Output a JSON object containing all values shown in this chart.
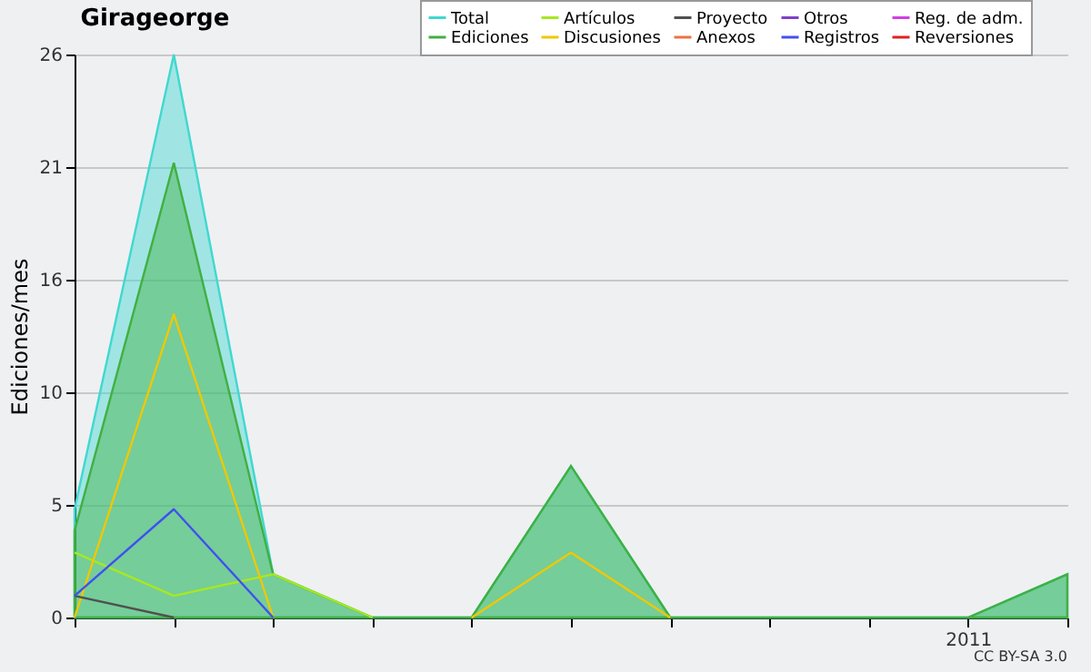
{
  "chart_data": {
    "type": "line",
    "title": "Girageorge",
    "ylabel": "Ediciones/mes",
    "categories": [
      null,
      null,
      null,
      null,
      null,
      null,
      null,
      null,
      null,
      "2011",
      null
    ],
    "ylim": [
      0,
      26
    ],
    "yticks": [
      0,
      {
        "value": 5.2,
        "label": "5"
      },
      {
        "value": 10.4,
        "label": "10"
      },
      {
        "value": 15.6,
        "label": "16"
      },
      {
        "value": 20.8,
        "label": "21"
      },
      26
    ],
    "grid": "y",
    "legend": "top right",
    "annotations": [
      "CC BY-SA 3.0"
    ],
    "series": [
      {
        "name": "Total",
        "type": "area",
        "color": "#40d8d0",
        "values": [
          5,
          26,
          2,
          0,
          0,
          7,
          0,
          0,
          0,
          0,
          2
        ]
      },
      {
        "name": "Ediciones",
        "type": "area",
        "color": "#40b040",
        "values": [
          4,
          21,
          2,
          0,
          0,
          7,
          0,
          0,
          0,
          0,
          2
        ]
      },
      {
        "name": "Artículos",
        "color": "#a8e820",
        "values": [
          3,
          1,
          2,
          0,
          null,
          null,
          null,
          null,
          null,
          null,
          null
        ]
      },
      {
        "name": "Discusiones",
        "color": "#f0c800",
        "values": [
          0,
          14,
          0,
          null,
          0,
          3,
          0,
          null,
          null,
          null,
          null
        ]
      },
      {
        "name": "Proyecto",
        "color": "#505050",
        "values": [
          1,
          0,
          null,
          null,
          null,
          null,
          null,
          null,
          null,
          null,
          null
        ]
      },
      {
        "name": "Anexos",
        "color": "#f07040",
        "values": [
          null,
          null,
          null,
          null,
          null,
          null,
          null,
          null,
          null,
          null,
          null
        ]
      },
      {
        "name": "Otros",
        "color": "#8040c8",
        "values": [
          null,
          null,
          null,
          null,
          null,
          null,
          null,
          null,
          null,
          null,
          null
        ]
      },
      {
        "name": "Registros",
        "color": "#4050f0",
        "values": [
          1,
          5,
          0,
          null,
          null,
          null,
          null,
          null,
          null,
          null,
          null
        ]
      },
      {
        "name": "Reg. de adm.",
        "color": "#d040e0",
        "values": [
          null,
          null,
          null,
          null,
          null,
          null,
          null,
          null,
          null,
          null,
          null
        ]
      },
      {
        "name": "Reversiones",
        "color": "#e02020",
        "values": [
          null,
          null,
          null,
          null,
          null,
          null,
          null,
          null,
          null,
          null,
          null
        ]
      }
    ]
  }
}
